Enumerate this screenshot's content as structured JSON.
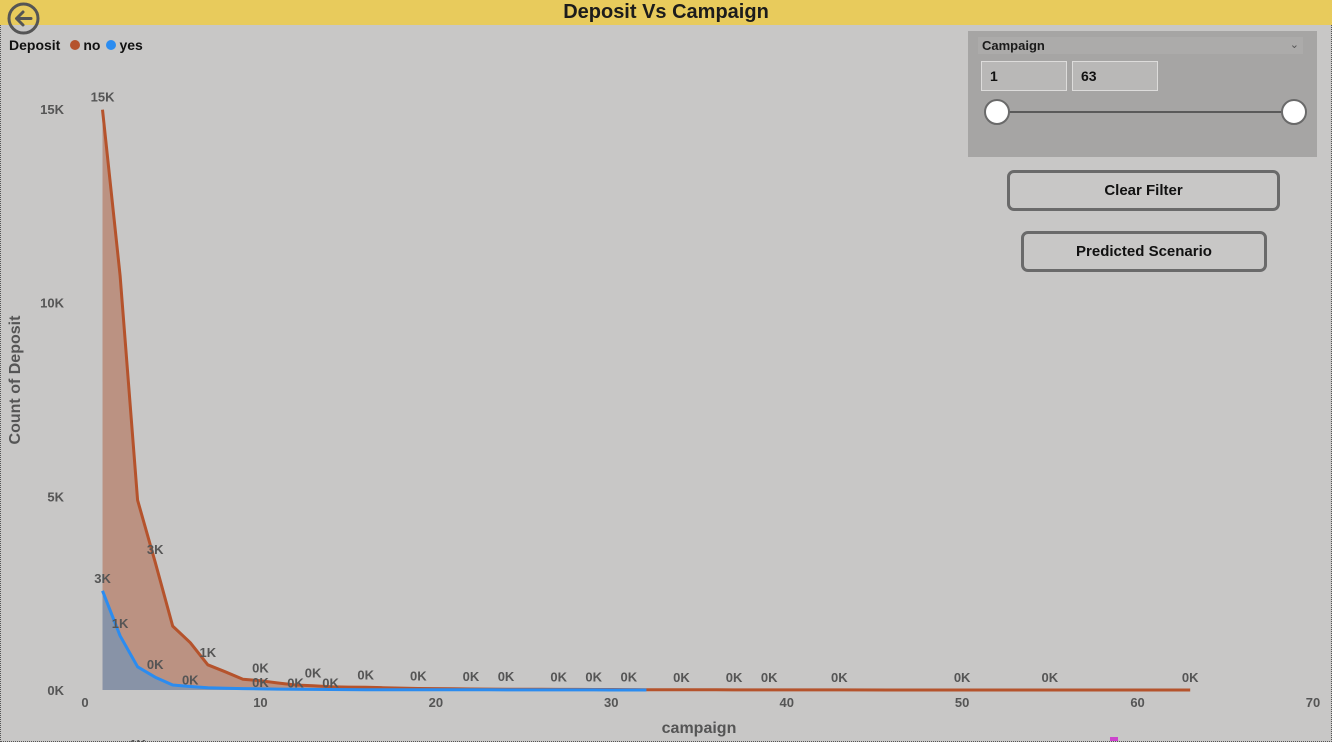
{
  "title": "Deposit Vs Campaign",
  "legend": {
    "title": "Deposit",
    "items": [
      {
        "label": "no",
        "color": "#b5532c"
      },
      {
        "label": "yes",
        "color": "#2b8cf0"
      }
    ]
  },
  "slicer": {
    "header": "Campaign",
    "min_value": "1",
    "max_value": "63",
    "range_fraction": [
      0,
      1
    ]
  },
  "buttons": {
    "clear_filter": "Clear Filter",
    "predicted_scenario": "Predicted Scenario"
  },
  "chart_data": {
    "type": "area",
    "title": "Deposit Vs Campaign",
    "xlabel": "campaign",
    "ylabel": "Count of Deposit",
    "xlim": [
      0,
      70
    ],
    "ylim": [
      0,
      15000
    ],
    "x_ticks": [
      "0",
      "10",
      "20",
      "30",
      "40",
      "50",
      "60",
      "70"
    ],
    "y_ticks": [
      {
        "value": 0,
        "label": "0K"
      },
      {
        "value": 5000,
        "label": "5K"
      },
      {
        "value": 10000,
        "label": "10K"
      },
      {
        "value": 15000,
        "label": "15K"
      }
    ],
    "series": [
      {
        "name": "no",
        "color": "#b5532c",
        "fill": "#b98875",
        "points": [
          [
            1,
            14983
          ],
          [
            2,
            10700
          ],
          [
            3,
            4900
          ],
          [
            4,
            3300
          ],
          [
            5,
            1650
          ],
          [
            6,
            1220
          ],
          [
            7,
            650
          ],
          [
            8,
            470
          ],
          [
            9,
            280
          ],
          [
            10,
            240
          ],
          [
            11,
            180
          ],
          [
            12,
            130
          ],
          [
            13,
            110
          ],
          [
            14,
            85
          ],
          [
            15,
            75
          ],
          [
            16,
            70
          ],
          [
            17,
            60
          ],
          [
            18,
            50
          ],
          [
            19,
            40
          ],
          [
            20,
            35
          ],
          [
            21,
            30
          ],
          [
            22,
            25
          ],
          [
            23,
            22
          ],
          [
            24,
            20
          ],
          [
            25,
            20
          ],
          [
            26,
            18
          ],
          [
            27,
            16
          ],
          [
            28,
            15
          ],
          [
            29,
            14
          ],
          [
            30,
            12
          ],
          [
            31,
            10
          ],
          [
            32,
            8
          ],
          [
            33,
            6
          ],
          [
            34,
            5
          ],
          [
            35,
            5
          ],
          [
            36,
            4
          ],
          [
            37,
            3
          ],
          [
            38,
            3
          ],
          [
            39,
            2
          ],
          [
            41,
            2
          ],
          [
            43,
            2
          ],
          [
            50,
            1
          ],
          [
            55,
            1
          ],
          [
            58,
            1
          ],
          [
            63,
            1
          ]
        ],
        "labels": [
          {
            "x": 1,
            "text": "15K"
          },
          {
            "x": 4,
            "text": "3K"
          },
          {
            "x": 7,
            "text": "1K"
          },
          {
            "x": 10,
            "text": "0K"
          },
          {
            "x": 13,
            "text": "0K"
          },
          {
            "x": 16,
            "text": "0K"
          },
          {
            "x": 19,
            "text": "0K"
          },
          {
            "x": 22,
            "text": "0K"
          },
          {
            "x": 24,
            "text": "0K"
          },
          {
            "x": 27,
            "text": "0K"
          },
          {
            "x": 29,
            "text": "0K"
          },
          {
            "x": 31,
            "text": "0K"
          },
          {
            "x": 34,
            "text": "0K"
          },
          {
            "x": 37,
            "text": "0K"
          },
          {
            "x": 39,
            "text": "0K"
          },
          {
            "x": 43,
            "text": "0K"
          },
          {
            "x": 50,
            "text": "0K"
          },
          {
            "x": 55,
            "text": "0K"
          },
          {
            "x": 63,
            "text": "0K"
          }
        ]
      },
      {
        "name": "yes",
        "color": "#2b8cf0",
        "fill": "#7f93ae",
        "points": [
          [
            1,
            2561
          ],
          [
            2,
            1400
          ],
          [
            3,
            600
          ],
          [
            4,
            330
          ],
          [
            5,
            130
          ],
          [
            6,
            90
          ],
          [
            7,
            60
          ],
          [
            8,
            45
          ],
          [
            9,
            35
          ],
          [
            10,
            28
          ],
          [
            11,
            22
          ],
          [
            12,
            18
          ],
          [
            13,
            15
          ],
          [
            14,
            12
          ],
          [
            15,
            10
          ],
          [
            16,
            9
          ],
          [
            17,
            8
          ],
          [
            18,
            7
          ],
          [
            19,
            6
          ],
          [
            20,
            5
          ],
          [
            21,
            5
          ],
          [
            22,
            4
          ],
          [
            23,
            4
          ],
          [
            24,
            3
          ],
          [
            25,
            3
          ],
          [
            26,
            3
          ],
          [
            27,
            2
          ],
          [
            28,
            2
          ],
          [
            29,
            2
          ],
          [
            30,
            1
          ],
          [
            31,
            1
          ],
          [
            32,
            1
          ]
        ],
        "labels": [
          {
            "x": 1,
            "text": "3K"
          },
          {
            "x": 2,
            "text": "1K"
          },
          {
            "x": 3,
            "text": "1K"
          },
          {
            "x": 4,
            "text": "0K"
          },
          {
            "x": 6,
            "text": "0K"
          },
          {
            "x": 10,
            "text": "0K"
          },
          {
            "x": 12,
            "text": "0K"
          },
          {
            "x": 14,
            "text": "0K"
          }
        ]
      }
    ]
  }
}
